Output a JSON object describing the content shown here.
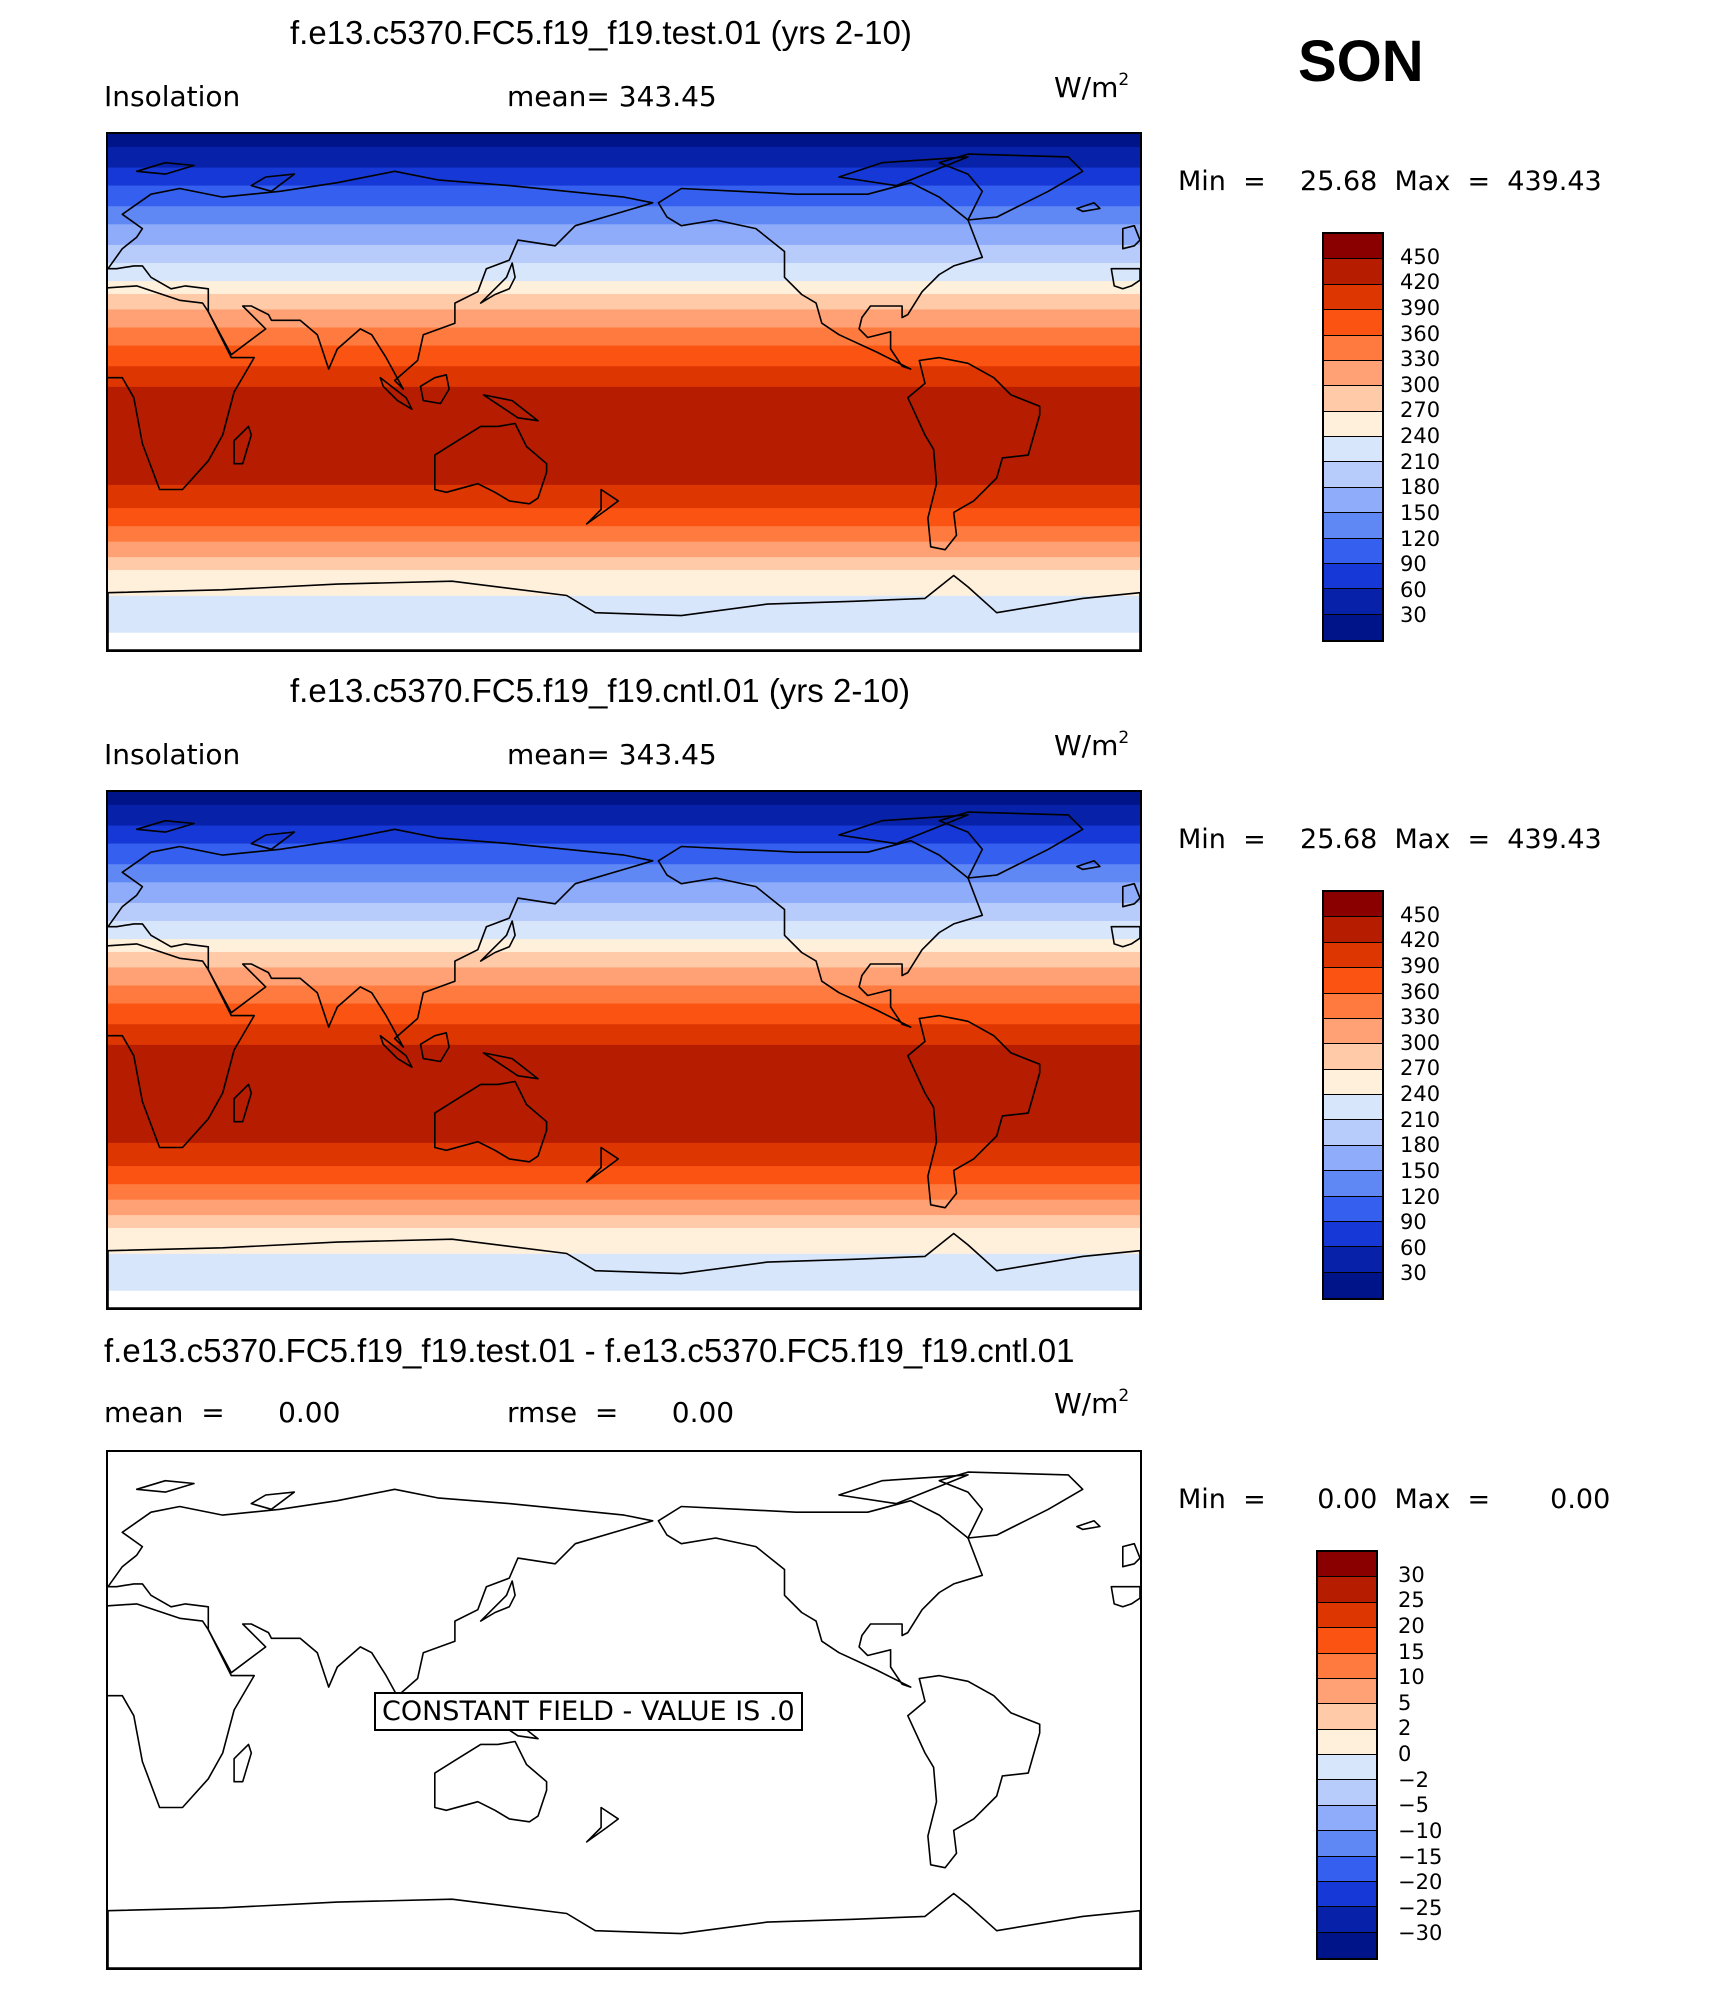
{
  "season": "SON",
  "panels": [
    {
      "id": "test",
      "title": "f.e13.c5370.FC5.f19_f19.test.01 (yrs 2-10)",
      "left_label": "Insolation",
      "center_label": "mean=  343.45",
      "units_base": "W/m",
      "units_exp": "2",
      "minmax": "Min  =    25.68  Max  =  439.43",
      "filled": true
    },
    {
      "id": "cntl",
      "title": "f.e13.c5370.FC5.f19_f19.cntl.01 (yrs 2-10)",
      "left_label": "Insolation",
      "center_label": "mean=  343.45",
      "units_base": "W/m",
      "units_exp": "2",
      "minmax": "Min  =    25.68  Max  =  439.43",
      "filled": true
    },
    {
      "id": "diff",
      "title": "f.e13.c5370.FC5.f19_f19.test.01 - f.e13.c5370.FC5.f19_f19.cntl.01",
      "left_label": "mean  =      0.00",
      "center_label": "rmse  =      0.00",
      "units_base": "W/m",
      "units_exp": "2",
      "minmax": "Min  =      0.00  Max  =       0.00",
      "filled": false,
      "constant_field_label": "CONSTANT FIELD - VALUE IS .0"
    }
  ],
  "colorbars": {
    "abs": {
      "levels": [
        "450",
        "420",
        "390",
        "360",
        "330",
        "300",
        "270",
        "240",
        "210",
        "180",
        "150",
        "120",
        "90",
        "60",
        "30"
      ],
      "colors": [
        "#8a0000",
        "#b51c00",
        "#de3600",
        "#fb5412",
        "#ff7a3e",
        "#ffa174",
        "#ffcaa8",
        "#fff0dc",
        "#d7e6fb",
        "#b7ccfa",
        "#8eacfa",
        "#6088f5",
        "#3560ef",
        "#1538d6",
        "#0722a8",
        "#00148a"
      ]
    },
    "diff": {
      "levels": [
        "30",
        "25",
        "20",
        "15",
        "10",
        "5",
        "2",
        "0",
        "−2",
        "−5",
        "−10",
        "−15",
        "−20",
        "−25",
        "−30"
      ],
      "colors": [
        "#8a0000",
        "#b51c00",
        "#de3600",
        "#fb5412",
        "#ff7a3e",
        "#ffa174",
        "#ffcaa8",
        "#fff0dc",
        "#d7e6fb",
        "#b7ccfa",
        "#8eacfa",
        "#6088f5",
        "#3560ef",
        "#1538d6",
        "#0722a8",
        "#00148a"
      ]
    }
  },
  "map_bands": {
    "colors": [
      "#00148a",
      "#0722a8",
      "#1538d6",
      "#3560ef",
      "#6088f5",
      "#8eacfa",
      "#b7ccfa",
      "#d7e6fb",
      "#fff0dc",
      "#ffcaa8",
      "#ffa174",
      "#ff7a3e",
      "#fb5412",
      "#de3600",
      "#b51c00",
      "#b51c00",
      "#b51c00",
      "#de3600",
      "#fb5412",
      "#ff7a3e",
      "#ffa174",
      "#ffcaa8",
      "#fff0dc",
      "#fff0dc",
      "#d7e6fb",
      "#d7e6fb"
    ],
    "fractions": [
      0.025,
      0.04,
      0.035,
      0.04,
      0.035,
      0.04,
      0.035,
      0.035,
      0.025,
      0.03,
      0.035,
      0.035,
      0.04,
      0.04,
      0.06,
      0.06,
      0.07,
      0.045,
      0.035,
      0.03,
      0.03,
      0.025,
      0.035,
      0.015,
      0.04,
      0.03
    ]
  }
}
